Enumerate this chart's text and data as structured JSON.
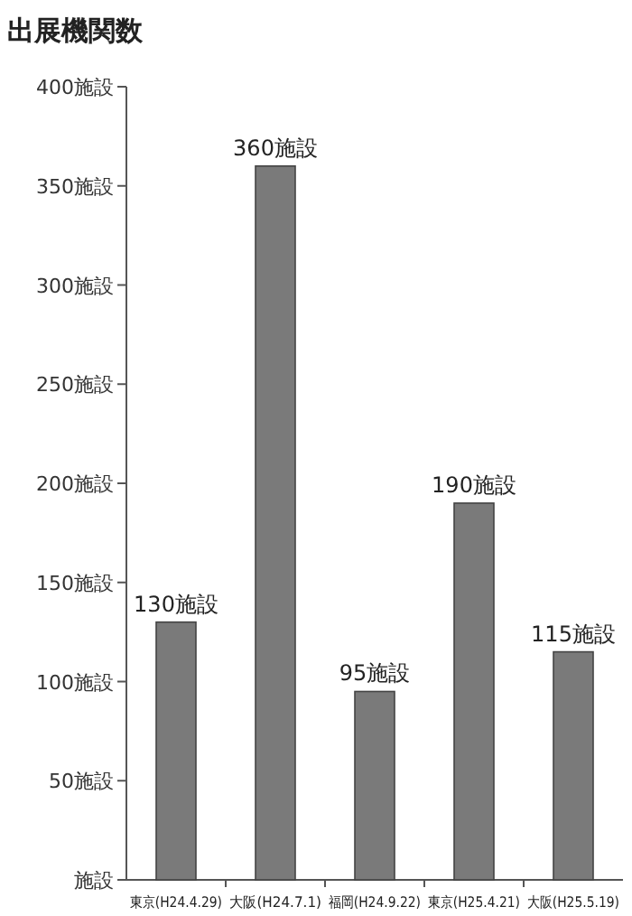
{
  "chart_data": {
    "type": "bar",
    "title": "出展機関数",
    "categories": [
      "東京(H24.4.29)",
      "大阪(H24.7.1)",
      "福岡(H24.9.22)",
      "東京(H25.4.21)",
      "大阪(H25.5.19)"
    ],
    "values": [
      130,
      360,
      95,
      190,
      115
    ],
    "value_labels": [
      "130施設",
      "360施設",
      "95施設",
      "190施設",
      "115施設"
    ],
    "color": "#7a7a7a",
    "ylim": [
      0,
      400
    ],
    "yticks": [
      {
        "value": 0,
        "label": "施設"
      },
      {
        "value": 50,
        "label": "50施設"
      },
      {
        "value": 100,
        "label": "100施設"
      },
      {
        "value": 150,
        "label": "150施設"
      },
      {
        "value": 200,
        "label": "200施設"
      },
      {
        "value": 250,
        "label": "250施設"
      },
      {
        "value": 300,
        "label": "300施設"
      },
      {
        "value": 350,
        "label": "350施設"
      },
      {
        "value": 400,
        "label": "400施設"
      }
    ],
    "grid": false
  }
}
